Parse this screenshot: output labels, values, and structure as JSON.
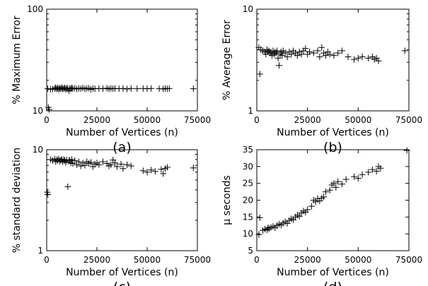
{
  "chart_data": [
    {
      "type": "scatter",
      "panel_label": "(a)",
      "xlabel": "Number of Vertices (n)",
      "ylabel": "% Maximum Error",
      "xlim": [
        0,
        75000
      ],
      "ylim": [
        10,
        100
      ],
      "ylog": true,
      "x_ticks": [
        "0",
        "25000",
        "50000",
        "75000"
      ],
      "y_ticks": [
        "10",
        "100"
      ],
      "y_tick_values": [
        10,
        100
      ],
      "marker": "plus",
      "grid": false,
      "points": [
        [
          500,
          16.5
        ],
        [
          800,
          10.8
        ],
        [
          1200,
          10.3
        ],
        [
          2000,
          16.3
        ],
        [
          3000,
          16.4
        ],
        [
          4000,
          16.6
        ],
        [
          4500,
          16.9
        ],
        [
          5000,
          16.4
        ],
        [
          5500,
          16.8
        ],
        [
          6000,
          16.3
        ],
        [
          6500,
          16.7
        ],
        [
          7000,
          16.5
        ],
        [
          7500,
          16.9
        ],
        [
          8000,
          16.4
        ],
        [
          8500,
          16.6
        ],
        [
          9000,
          16.8
        ],
        [
          9500,
          16.3
        ],
        [
          10000,
          16.7
        ],
        [
          10500,
          16.5
        ],
        [
          11000,
          15.8
        ],
        [
          11500,
          16.6
        ],
        [
          12000,
          16.4
        ],
        [
          12500,
          16.8
        ],
        [
          13000,
          16.5
        ],
        [
          14000,
          16.7
        ],
        [
          15000,
          16.4
        ],
        [
          16000,
          16.6
        ],
        [
          17000,
          16.5
        ],
        [
          18000,
          16.8
        ],
        [
          19000,
          16.4
        ],
        [
          20000,
          16.6
        ],
        [
          21000,
          16.7
        ],
        [
          22000,
          16.3
        ],
        [
          23000,
          16.6
        ],
        [
          24000,
          16.5
        ],
        [
          26000,
          16.6
        ],
        [
          28000,
          16.5
        ],
        [
          30000,
          16.7
        ],
        [
          31000,
          16.4
        ],
        [
          32000,
          16.6
        ],
        [
          33000,
          16.5
        ],
        [
          34000,
          16.6
        ],
        [
          36000,
          16.5
        ],
        [
          38000,
          16.6
        ],
        [
          40000,
          16.4
        ],
        [
          42000,
          16.6
        ],
        [
          45000,
          16.5
        ],
        [
          48000,
          16.6
        ],
        [
          50000,
          16.5
        ],
        [
          52000,
          16.6
        ],
        [
          56000,
          16.5
        ],
        [
          58000,
          16.4
        ],
        [
          59000,
          16.6
        ],
        [
          60000,
          16.5
        ],
        [
          61000,
          16.6
        ],
        [
          73000,
          16.5
        ]
      ]
    },
    {
      "type": "scatter",
      "panel_label": "(b)",
      "xlabel": "Number of Vertices (n)",
      "ylabel": "% Average Error",
      "xlim": [
        0,
        75000
      ],
      "ylim": [
        1,
        10
      ],
      "ylog": true,
      "x_ticks": [
        "0",
        "25000",
        "50000",
        "75000"
      ],
      "y_ticks": [
        "1",
        "10"
      ],
      "y_tick_values": [
        1,
        10
      ],
      "marker": "plus",
      "grid": false,
      "points": [
        [
          1000,
          4.2
        ],
        [
          1500,
          2.3
        ],
        [
          2000,
          4.0
        ],
        [
          3000,
          3.9
        ],
        [
          4000,
          3.8
        ],
        [
          4500,
          3.6
        ],
        [
          5000,
          4.0
        ],
        [
          5500,
          3.8
        ],
        [
          6000,
          3.9
        ],
        [
          6500,
          3.7
        ],
        [
          7000,
          3.8
        ],
        [
          7500,
          3.5
        ],
        [
          8000,
          3.9
        ],
        [
          8500,
          3.6
        ],
        [
          9000,
          3.8
        ],
        [
          9500,
          3.7
        ],
        [
          10000,
          3.9
        ],
        [
          10500,
          3.3
        ],
        [
          11000,
          2.8
        ],
        [
          11500,
          3.6
        ],
        [
          12000,
          3.8
        ],
        [
          12500,
          3.5
        ],
        [
          13000,
          3.9
        ],
        [
          14000,
          3.7
        ],
        [
          15000,
          3.4
        ],
        [
          16000,
          3.8
        ],
        [
          17000,
          3.6
        ],
        [
          18000,
          3.9
        ],
        [
          19000,
          3.7
        ],
        [
          20000,
          3.5
        ],
        [
          21000,
          3.8
        ],
        [
          22000,
          3.6
        ],
        [
          23000,
          3.9
        ],
        [
          24000,
          4.1
        ],
        [
          25000,
          3.6
        ],
        [
          26000,
          3.8
        ],
        [
          28000,
          3.7
        ],
        [
          30000,
          3.9
        ],
        [
          31000,
          3.4
        ],
        [
          32000,
          4.2
        ],
        [
          33000,
          3.7
        ],
        [
          34000,
          3.5
        ],
        [
          35000,
          3.8
        ],
        [
          36000,
          3.6
        ],
        [
          38000,
          3.5
        ],
        [
          40000,
          3.7
        ],
        [
          42000,
          3.9
        ],
        [
          45000,
          3.4
        ],
        [
          48000,
          3.2
        ],
        [
          50000,
          3.3
        ],
        [
          52000,
          3.4
        ],
        [
          55000,
          3.3
        ],
        [
          57000,
          3.4
        ],
        [
          58000,
          3.2
        ],
        [
          59000,
          3.3
        ],
        [
          60000,
          3.1
        ],
        [
          73000,
          3.9
        ]
      ]
    },
    {
      "type": "scatter",
      "panel_label": "(c)",
      "xlabel": "Number of Vertices (n)",
      "ylabel": "% standard deviation",
      "xlim": [
        0,
        75000
      ],
      "ylim": [
        1,
        10
      ],
      "ylog": true,
      "x_ticks": [
        "0",
        "25000",
        "50000",
        "75000"
      ],
      "y_ticks": [
        "1",
        "10"
      ],
      "y_tick_values": [
        1,
        10
      ],
      "marker": "plus",
      "grid": false,
      "points": [
        [
          300,
          3.8
        ],
        [
          600,
          3.6
        ],
        [
          2000,
          8.0
        ],
        [
          3000,
          7.8
        ],
        [
          4000,
          8.1
        ],
        [
          4500,
          7.6
        ],
        [
          5000,
          8.0
        ],
        [
          5500,
          7.8
        ],
        [
          6000,
          8.1
        ],
        [
          6500,
          7.7
        ],
        [
          7000,
          7.9
        ],
        [
          7500,
          8.0
        ],
        [
          8000,
          7.6
        ],
        [
          8500,
          8.0
        ],
        [
          9000,
          7.8
        ],
        [
          9500,
          7.5
        ],
        [
          10000,
          7.9
        ],
        [
          10500,
          4.3
        ],
        [
          11000,
          7.7
        ],
        [
          11500,
          7.9
        ],
        [
          12000,
          7.4
        ],
        [
          12500,
          8.0
        ],
        [
          13000,
          7.3
        ],
        [
          14000,
          7.8
        ],
        [
          15000,
          7.1
        ],
        [
          16000,
          7.6
        ],
        [
          17000,
          6.9
        ],
        [
          18000,
          7.4
        ],
        [
          19000,
          7.0
        ],
        [
          20000,
          7.6
        ],
        [
          21000,
          7.3
        ],
        [
          22000,
          7.5
        ],
        [
          23000,
          6.8
        ],
        [
          24000,
          7.2
        ],
        [
          25000,
          7.4
        ],
        [
          26000,
          7.1
        ],
        [
          28000,
          7.6
        ],
        [
          30000,
          7.3
        ],
        [
          31000,
          6.9
        ],
        [
          32000,
          7.1
        ],
        [
          33000,
          7.9
        ],
        [
          34000,
          7.4
        ],
        [
          35000,
          6.8
        ],
        [
          37000,
          7.2
        ],
        [
          38000,
          6.5
        ],
        [
          40000,
          7.1
        ],
        [
          42000,
          6.9
        ],
        [
          48000,
          6.2
        ],
        [
          50000,
          6.0
        ],
        [
          52000,
          6.3
        ],
        [
          54000,
          6.1
        ],
        [
          57000,
          6.4
        ],
        [
          58000,
          5.8
        ],
        [
          59000,
          6.5
        ],
        [
          60000,
          6.7
        ],
        [
          73000,
          6.6
        ]
      ]
    },
    {
      "type": "scatter",
      "panel_label": "(d)",
      "xlabel": "Number of Vertices (n)",
      "ylabel": "μ seconds",
      "xlim": [
        0,
        75000
      ],
      "ylim": [
        5,
        35
      ],
      "ylog": false,
      "x_ticks": [
        "0",
        "25000",
        "50000",
        "75000"
      ],
      "y_ticks": [
        "5",
        "10",
        "15",
        "20",
        "25",
        "30",
        "35"
      ],
      "y_tick_values": [
        5,
        10,
        15,
        20,
        25,
        30,
        35
      ],
      "marker": "plus",
      "grid": false,
      "points": [
        [
          1000,
          9.8
        ],
        [
          1500,
          14.8
        ],
        [
          3000,
          11.0
        ],
        [
          4000,
          11.4
        ],
        [
          5000,
          11.2
        ],
        [
          5500,
          11.8
        ],
        [
          6000,
          11.5
        ],
        [
          7000,
          11.9
        ],
        [
          8000,
          12.2
        ],
        [
          9000,
          11.8
        ],
        [
          10000,
          12.5
        ],
        [
          11000,
          12.9
        ],
        [
          12000,
          12.6
        ],
        [
          13000,
          13.2
        ],
        [
          14000,
          13.6
        ],
        [
          15000,
          13.1
        ],
        [
          16000,
          14.0
        ],
        [
          17000,
          14.5
        ],
        [
          18000,
          14.2
        ],
        [
          19000,
          15.0
        ],
        [
          20000,
          15.6
        ],
        [
          21000,
          15.2
        ],
        [
          22000,
          16.2
        ],
        [
          23000,
          16.8
        ],
        [
          24000,
          16.4
        ],
        [
          25000,
          17.2
        ],
        [
          27000,
          18.2
        ],
        [
          28000,
          20.0
        ],
        [
          29000,
          19.5
        ],
        [
          30000,
          20.5
        ],
        [
          31000,
          19.8
        ],
        [
          32000,
          20.6
        ],
        [
          33000,
          21.0
        ],
        [
          34000,
          22.5
        ],
        [
          36000,
          23.0
        ],
        [
          37000,
          24.5
        ],
        [
          38000,
          25.0
        ],
        [
          39000,
          23.8
        ],
        [
          40000,
          25.5
        ],
        [
          42000,
          24.8
        ],
        [
          44000,
          26.2
        ],
        [
          48000,
          27.0
        ],
        [
          50000,
          26.5
        ],
        [
          52000,
          27.6
        ],
        [
          55000,
          28.3
        ],
        [
          57000,
          29.1
        ],
        [
          59000,
          28.6
        ],
        [
          60000,
          30.0
        ],
        [
          61000,
          29.5
        ],
        [
          74000,
          34.8
        ]
      ]
    }
  ]
}
